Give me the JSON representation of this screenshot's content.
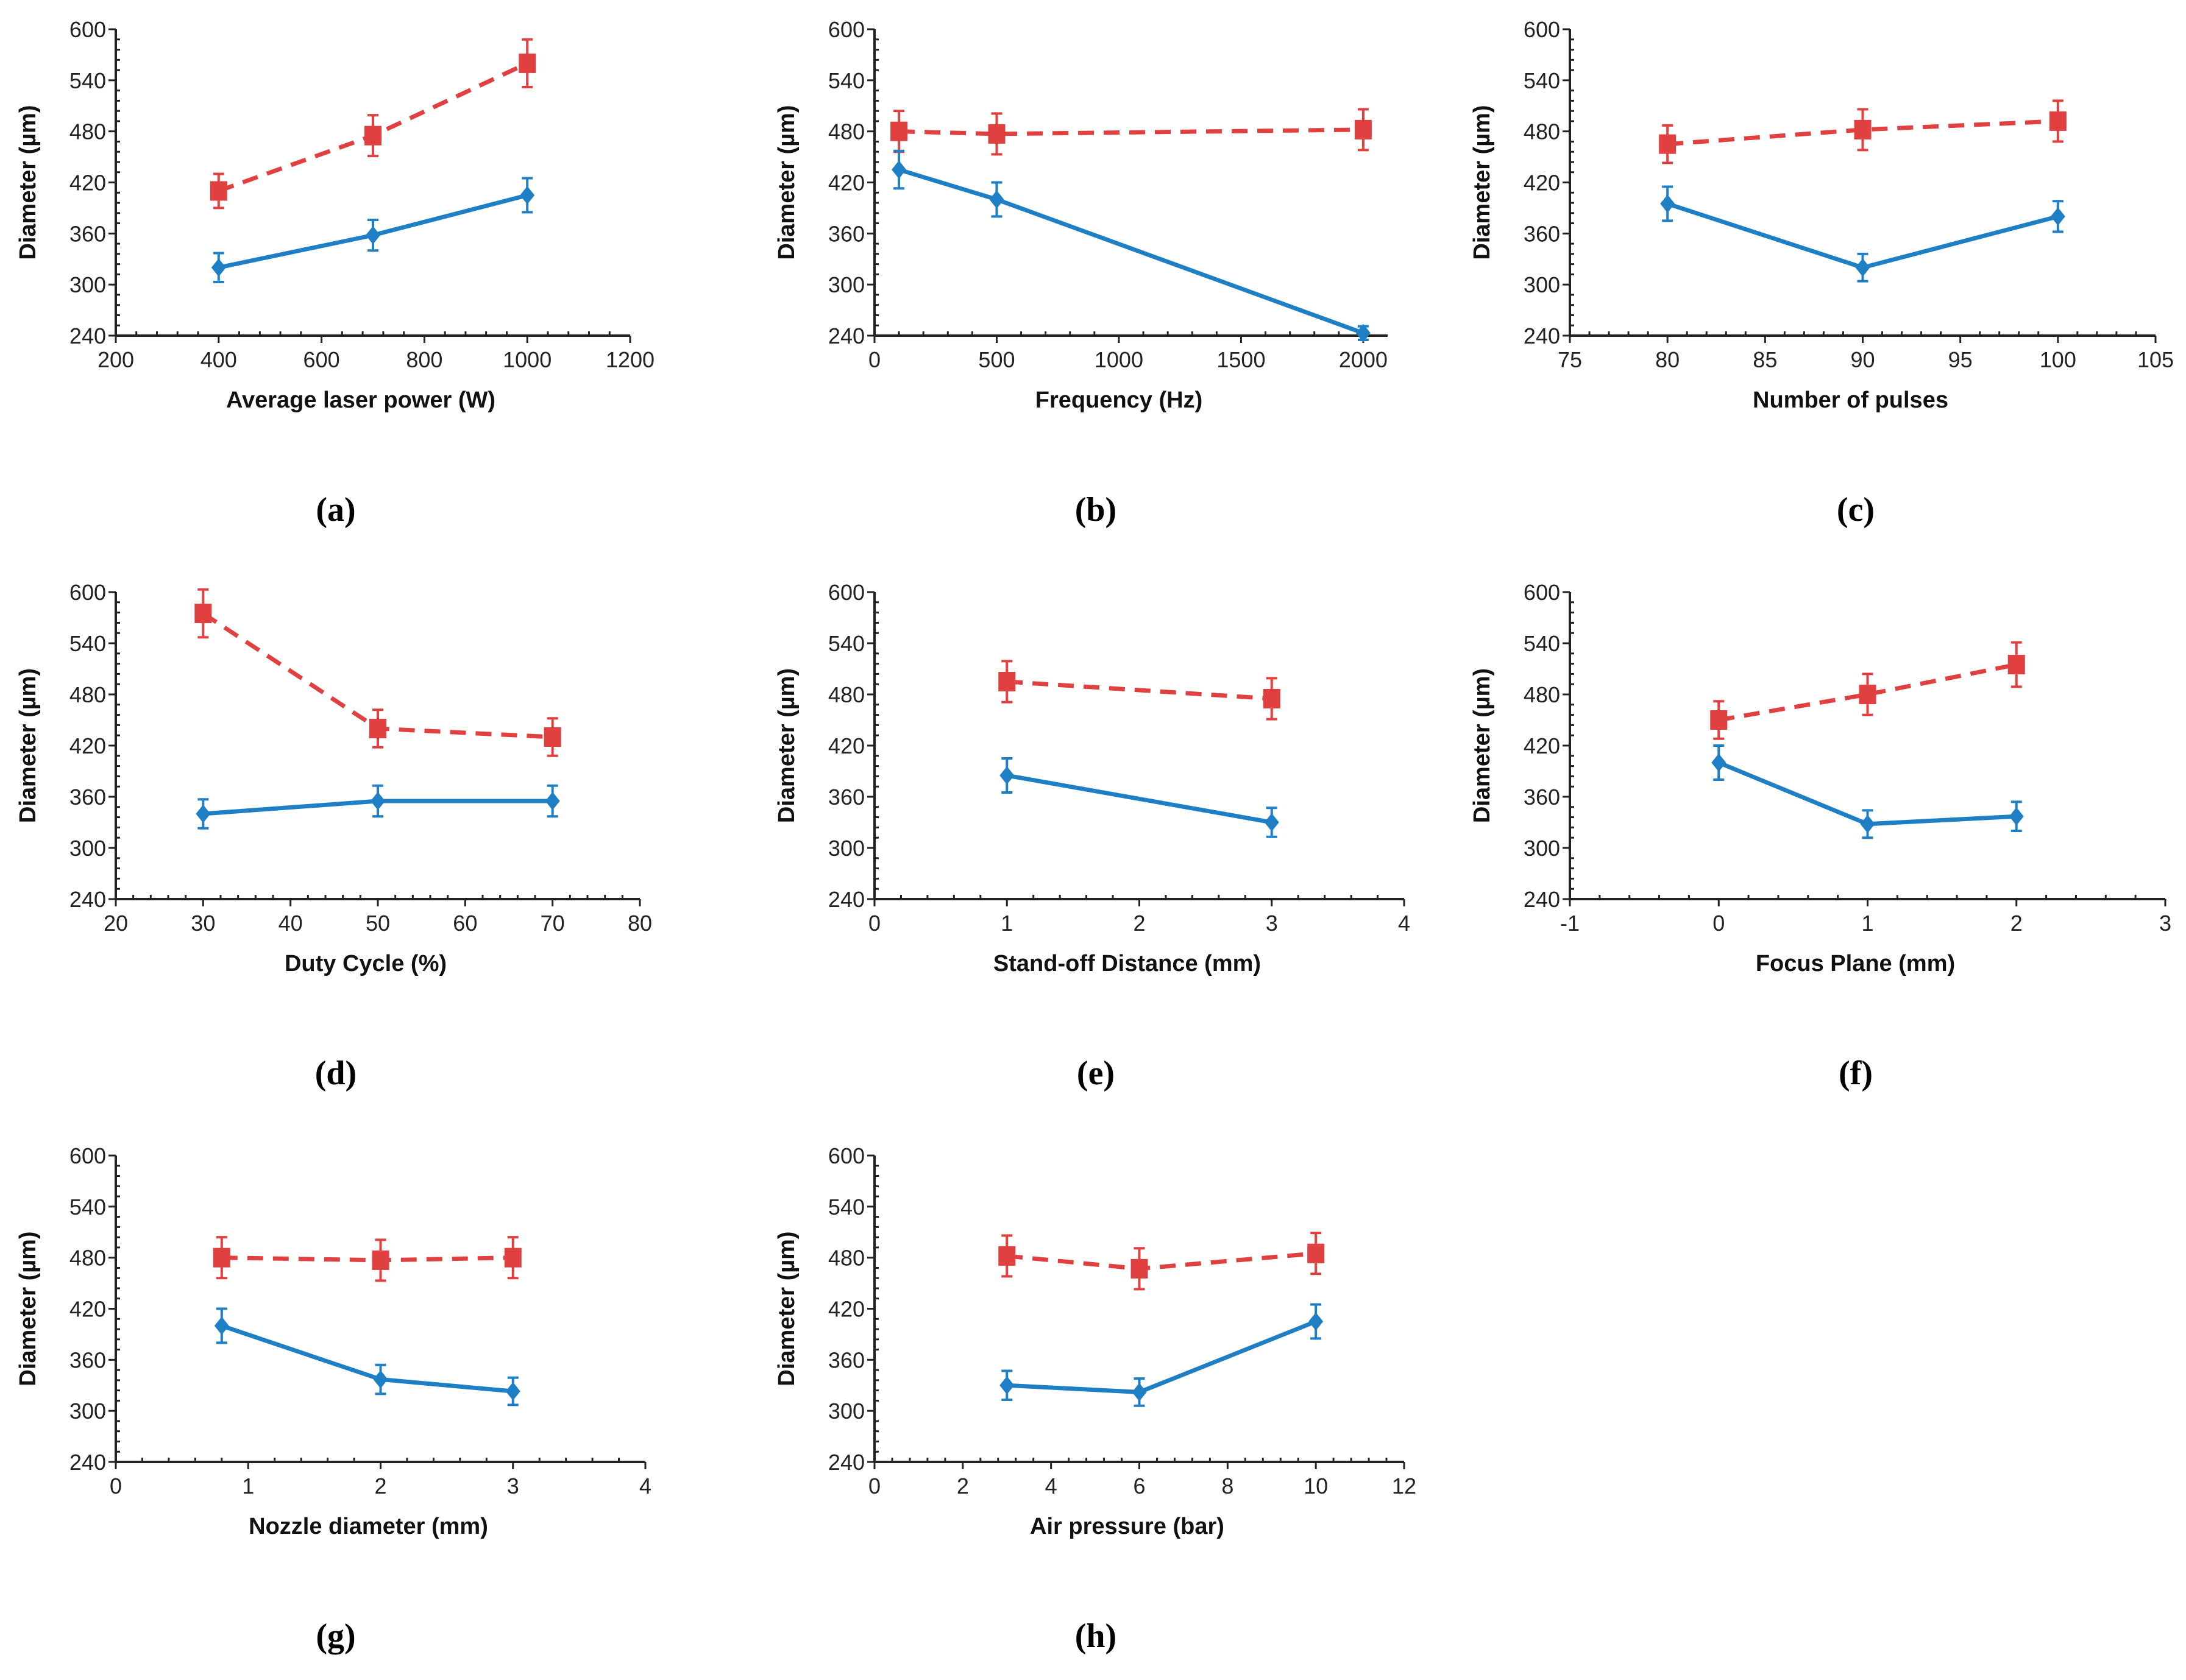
{
  "colors": {
    "red": "#e0403f",
    "blue": "#1f7fc4",
    "axis": "#222222"
  },
  "chart_data": [
    {
      "type": "line",
      "panel_label": "(a)",
      "xlabel": "Average laser power (W)",
      "ylabel": "Diameter (µm)",
      "xlim": [
        200,
        1200
      ],
      "xticks": [
        200,
        400,
        600,
        800,
        1000,
        1200
      ],
      "ylim": [
        240,
        600
      ],
      "yticks": [
        240,
        300,
        360,
        420,
        480,
        540,
        600
      ],
      "series": [
        {
          "name": "red-dashed",
          "style": "dashed",
          "marker": "square",
          "x": [
            400,
            700,
            1000
          ],
          "y": [
            410,
            475,
            560
          ],
          "err": [
            20,
            24,
            28
          ]
        },
        {
          "name": "blue-solid",
          "style": "solid",
          "marker": "diamond",
          "x": [
            400,
            700,
            1000
          ],
          "y": [
            320,
            358,
            405
          ],
          "err": [
            17,
            18,
            20
          ]
        }
      ]
    },
    {
      "type": "line",
      "panel_label": "(b)",
      "xlabel": "Frequency (Hz)",
      "ylabel": "Diameter (µm)",
      "xlim": [
        0,
        2100
      ],
      "xticks": [
        0,
        500,
        1000,
        1500,
        2000
      ],
      "ylim": [
        240,
        600
      ],
      "yticks": [
        240,
        300,
        360,
        420,
        480,
        540,
        600
      ],
      "series": [
        {
          "name": "red-dashed",
          "style": "dashed",
          "marker": "square",
          "x": [
            100,
            500,
            2000
          ],
          "y": [
            480,
            477,
            482
          ],
          "err": [
            24,
            24,
            24
          ]
        },
        {
          "name": "blue-solid",
          "style": "solid",
          "marker": "diamond",
          "x": [
            100,
            500,
            2000
          ],
          "y": [
            435,
            400,
            243
          ],
          "err": [
            22,
            20,
            8
          ]
        }
      ]
    },
    {
      "type": "line",
      "panel_label": "(c)",
      "xlabel": "Number of pulses",
      "ylabel": "Diameter (µm)",
      "xlim": [
        75,
        105
      ],
      "xticks": [
        75,
        80,
        85,
        90,
        95,
        100,
        105
      ],
      "ylim": [
        240,
        600
      ],
      "yticks": [
        240,
        300,
        360,
        420,
        480,
        540,
        600
      ],
      "series": [
        {
          "name": "red-dashed",
          "style": "dashed",
          "marker": "square",
          "x": [
            80,
            90,
            100
          ],
          "y": [
            465,
            482,
            492
          ],
          "err": [
            22,
            24,
            24
          ]
        },
        {
          "name": "blue-solid",
          "style": "solid",
          "marker": "diamond",
          "x": [
            80,
            90,
            100
          ],
          "y": [
            395,
            320,
            380
          ],
          "err": [
            20,
            16,
            18
          ]
        }
      ]
    },
    {
      "type": "line",
      "panel_label": "(d)",
      "xlabel": "Duty Cycle (%)",
      "ylabel": "Diameter (µm)",
      "xlim": [
        20,
        80
      ],
      "xticks": [
        20,
        30,
        40,
        50,
        60,
        70,
        80
      ],
      "ylim": [
        240,
        600
      ],
      "yticks": [
        240,
        300,
        360,
        420,
        480,
        540,
        600
      ],
      "series": [
        {
          "name": "red-dashed",
          "style": "dashed",
          "marker": "square",
          "x": [
            30,
            50,
            70
          ],
          "y": [
            575,
            440,
            430
          ],
          "err": [
            28,
            22,
            22
          ]
        },
        {
          "name": "blue-solid",
          "style": "solid",
          "marker": "diamond",
          "x": [
            30,
            50,
            70
          ],
          "y": [
            340,
            355,
            355
          ],
          "err": [
            17,
            18,
            18
          ]
        }
      ]
    },
    {
      "type": "line",
      "panel_label": "(e)",
      "xlabel": "Stand-off Distance (mm)",
      "ylabel": "Diameter (µm)",
      "xlim": [
        0,
        4
      ],
      "xticks": [
        0,
        1,
        2,
        3,
        4
      ],
      "ylim": [
        240,
        600
      ],
      "yticks": [
        240,
        300,
        360,
        420,
        480,
        540,
        600
      ],
      "series": [
        {
          "name": "red-dashed",
          "style": "dashed",
          "marker": "square",
          "x": [
            1,
            3
          ],
          "y": [
            495,
            475
          ],
          "err": [
            24,
            24
          ]
        },
        {
          "name": "blue-solid",
          "style": "solid",
          "marker": "diamond",
          "x": [
            1,
            3
          ],
          "y": [
            385,
            330
          ],
          "err": [
            20,
            17
          ]
        }
      ]
    },
    {
      "type": "line",
      "panel_label": "(f)",
      "xlabel": "Focus Plane (mm)",
      "ylabel": "Diameter (µm)",
      "xlim": [
        -1,
        3
      ],
      "xticks": [
        -1,
        0,
        1,
        2,
        3
      ],
      "ylim": [
        240,
        600
      ],
      "yticks": [
        240,
        300,
        360,
        420,
        480,
        540,
        600
      ],
      "series": [
        {
          "name": "red-dashed",
          "style": "dashed",
          "marker": "square",
          "x": [
            0,
            1,
            2
          ],
          "y": [
            450,
            480,
            515
          ],
          "err": [
            22,
            24,
            26
          ]
        },
        {
          "name": "blue-solid",
          "style": "solid",
          "marker": "diamond",
          "x": [
            0,
            1,
            2
          ],
          "y": [
            400,
            328,
            337
          ],
          "err": [
            20,
            16,
            17
          ]
        }
      ]
    },
    {
      "type": "line",
      "panel_label": "(g)",
      "xlabel": "Nozzle diameter (mm)",
      "ylabel": "Diameter (µm)",
      "xlim": [
        0,
        4
      ],
      "xticks": [
        0,
        1,
        2,
        3,
        4
      ],
      "ylim": [
        240,
        600
      ],
      "yticks": [
        240,
        300,
        360,
        420,
        480,
        540,
        600
      ],
      "series": [
        {
          "name": "red-dashed",
          "style": "dashed",
          "marker": "square",
          "x": [
            0.8,
            2,
            3
          ],
          "y": [
            480,
            477,
            480
          ],
          "err": [
            24,
            24,
            24
          ]
        },
        {
          "name": "blue-solid",
          "style": "solid",
          "marker": "diamond",
          "x": [
            0.8,
            2,
            3
          ],
          "y": [
            400,
            337,
            323
          ],
          "err": [
            20,
            17,
            16
          ]
        }
      ]
    },
    {
      "type": "line",
      "panel_label": "(h)",
      "xlabel": "Air pressure (bar)",
      "ylabel": "Diameter (µm)",
      "xlim": [
        0,
        12
      ],
      "xticks": [
        0,
        2,
        4,
        6,
        8,
        10,
        12
      ],
      "ylim": [
        240,
        600
      ],
      "yticks": [
        240,
        300,
        360,
        420,
        480,
        540,
        600
      ],
      "series": [
        {
          "name": "red-dashed",
          "style": "dashed",
          "marker": "square",
          "x": [
            3,
            6,
            10
          ],
          "y": [
            482,
            467,
            485
          ],
          "err": [
            24,
            24,
            24
          ]
        },
        {
          "name": "blue-solid",
          "style": "solid",
          "marker": "diamond",
          "x": [
            3,
            6,
            10
          ],
          "y": [
            330,
            322,
            405
          ],
          "err": [
            17,
            16,
            20
          ]
        }
      ]
    }
  ]
}
